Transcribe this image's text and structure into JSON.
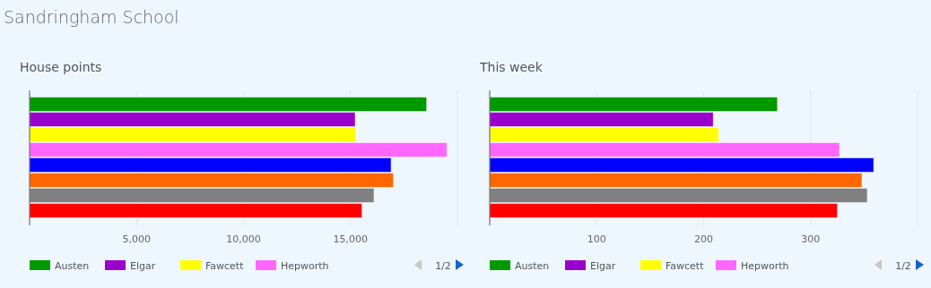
{
  "chart_data": [
    {
      "type": "bar",
      "orientation": "horizontal",
      "title": "House points",
      "annotations": [
        "Sandringham School",
        "1/2"
      ],
      "categories": [
        null
      ],
      "xlim": [
        0,
        20000
      ],
      "xticks": [
        {
          "value": 5000,
          "label": "5,000"
        },
        {
          "value": 10000,
          "label": "10,000"
        },
        {
          "value": 15000,
          "label": "15,000"
        },
        {
          "value": 20000,
          "label": null
        }
      ],
      "grid": "x",
      "legend": "bottom",
      "series": [
        {
          "name": "Austen",
          "color": "#009900",
          "values": [
            18560
          ]
        },
        {
          "name": "Elgar",
          "color": "#9900cc",
          "values": [
            15220
          ]
        },
        {
          "name": "Fawcett",
          "color": "#ffff00",
          "values": [
            15260
          ]
        },
        {
          "name": "Hepworth",
          "color": "#ff66ff",
          "values": [
            19510
          ]
        },
        {
          "color": "#0000ff",
          "values": [
            16900
          ]
        },
        {
          "color": "#ff6600",
          "values": [
            17010
          ]
        },
        {
          "color": "#808080",
          "values": [
            16100
          ]
        },
        {
          "color": "#ff0000",
          "values": [
            15540
          ]
        }
      ]
    },
    {
      "type": "bar",
      "orientation": "horizontal",
      "title": "This week",
      "annotations": [
        "1/2"
      ],
      "categories": [
        null
      ],
      "xlim": [
        0,
        400
      ],
      "xticks": [
        100,
        200,
        300,
        {
          "value": 400,
          "label": null
        }
      ],
      "grid": "x",
      "legend": "bottom",
      "series": [
        {
          "name": "Austen",
          "color": "#009900",
          "values": [
            269
          ]
        },
        {
          "name": "Elgar",
          "color": "#9900cc",
          "values": [
            209
          ]
        },
        {
          "name": "Fawcett",
          "color": "#ffff00",
          "values": [
            214
          ]
        },
        {
          "name": "Hepworth",
          "color": "#ff66ff",
          "values": [
            327
          ]
        },
        {
          "color": "#0000ff",
          "values": [
            359
          ]
        },
        {
          "color": "#ff6600",
          "values": [
            348
          ]
        },
        {
          "color": "#808080",
          "values": [
            353
          ]
        },
        {
          "color": "#ff0000",
          "values": [
            325
          ]
        }
      ]
    }
  ]
}
